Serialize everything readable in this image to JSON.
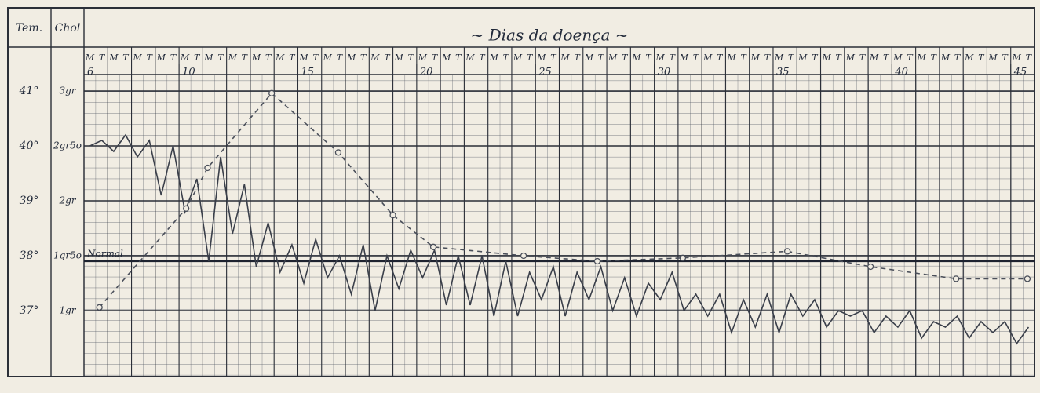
{
  "chart_data": {
    "type": "line",
    "title": "~ Dias da doença ~",
    "y_label": "Tem.",
    "y2_label": "Chol",
    "shift_labels": [
      "M",
      "T"
    ],
    "xlim": [
      6,
      46
    ],
    "xticks": [
      6,
      10,
      15,
      20,
      25,
      30,
      35,
      40,
      45
    ],
    "ylim": [
      35.8,
      41.3
    ],
    "yticks": [
      {
        "value": 41,
        "label": "41°"
      },
      {
        "value": 40,
        "label": "40°"
      },
      {
        "value": 39,
        "label": "39°"
      },
      {
        "value": 38,
        "label": "38°"
      },
      {
        "value": 37,
        "label": "37°"
      }
    ],
    "y2lim": [
      0.4,
      3.15
    ],
    "y2ticks": [
      {
        "value": 3,
        "label": "3gr"
      },
      {
        "value": 2.5,
        "label": "2gr5o"
      },
      {
        "value": 2,
        "label": "2gr"
      },
      {
        "value": 1.5,
        "label": "1gr5o"
      },
      {
        "value": 1,
        "label": "1gr"
      }
    ],
    "grid": true,
    "annotations": [
      {
        "text": "Normal",
        "value": 37.9
      }
    ],
    "series": [
      {
        "color": "#3a3f4a",
        "style": "solid",
        "x": [
          6.25,
          6.75,
          7.25,
          7.75,
          8.25,
          8.75,
          9.25,
          9.75,
          10.25,
          10.75,
          11.25,
          11.75,
          12.25,
          12.75,
          13.25,
          13.75,
          14.25,
          14.75,
          15.25,
          15.75,
          16.25,
          16.75,
          17.25,
          17.75,
          18.25,
          18.75,
          19.25,
          19.75,
          20.25,
          20.75,
          21.25,
          21.75,
          22.25,
          22.75,
          23.25,
          23.75,
          24.25,
          24.75,
          25.25,
          25.75,
          26.25,
          26.75,
          27.25,
          27.75,
          28.25,
          28.75,
          29.25,
          29.75,
          30.25,
          30.75,
          31.25,
          31.75,
          32.25,
          32.75,
          33.25,
          33.75,
          34.25,
          34.75,
          35.25,
          35.75,
          36.25,
          36.75,
          37.25,
          37.75,
          38.25,
          38.75,
          39.25,
          39.75,
          40.25,
          40.75,
          41.25,
          41.75,
          42.25,
          42.75,
          43.25,
          43.75,
          44.25,
          44.75,
          45.25,
          45.75
        ],
        "values": [
          40.0,
          40.1,
          39.9,
          40.2,
          39.8,
          40.1,
          39.1,
          40.0,
          38.8,
          39.4,
          37.9,
          39.8,
          38.4,
          39.3,
          37.8,
          38.6,
          37.7,
          38.2,
          37.5,
          38.3,
          37.6,
          38.0,
          37.3,
          38.2,
          37.0,
          38.0,
          37.4,
          38.1,
          37.6,
          38.1,
          37.1,
          38.0,
          37.1,
          38.0,
          36.9,
          37.9,
          36.9,
          37.7,
          37.2,
          37.8,
          36.9,
          37.7,
          37.2,
          37.8,
          37.0,
          37.6,
          36.9,
          37.5,
          37.2,
          37.7,
          37.0,
          37.3,
          36.9,
          37.3,
          36.6,
          37.2,
          36.7,
          37.3,
          36.6,
          37.3,
          36.9,
          37.2,
          36.7,
          37.0,
          36.9,
          37.0,
          36.6,
          36.9,
          36.7,
          37.0,
          36.5,
          36.8,
          36.7,
          36.9,
          36.5,
          36.8,
          36.6,
          36.8,
          36.4,
          36.7
        ]
      },
      {
        "color": "#4a4f5a",
        "style": "dashed",
        "axis": "y2",
        "x": [
          6.65,
          10.3,
          11.2,
          13.9,
          16.7,
          19.0,
          20.7,
          24.5,
          27.6,
          31.2,
          35.6,
          39.1,
          42.7,
          45.7
        ],
        "values": [
          1.03,
          1.93,
          2.3,
          2.98,
          2.44,
          1.87,
          1.58,
          1.5,
          1.45,
          1.48,
          1.54,
          1.4,
          1.29,
          1.29
        ]
      }
    ]
  }
}
